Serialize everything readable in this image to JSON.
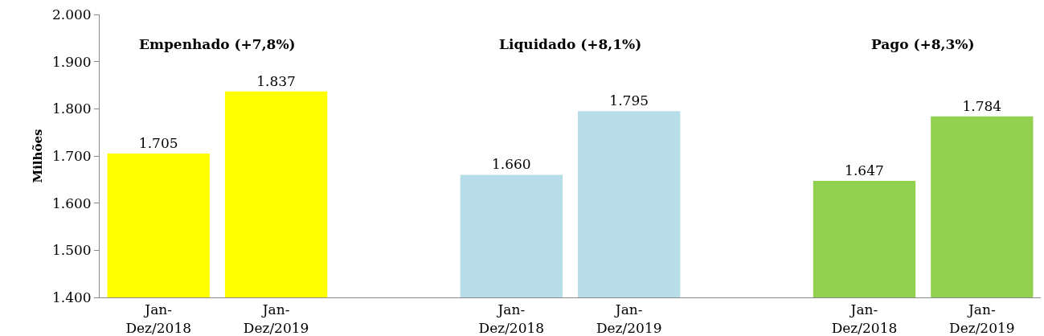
{
  "chart_data": {
    "type": "bar",
    "ylabel": "Milhões",
    "categories": [
      "Jan-\nDez/2018",
      "Jan-\nDez/2019",
      null,
      "Jan-\nDez/2018",
      "Jan-\nDez/2019",
      null,
      "Jan-\nDez/2018",
      "Jan-\nDez/2019"
    ],
    "values": [
      1705,
      1837,
      null,
      1660,
      1795,
      null,
      1647,
      1784
    ],
    "colors": [
      "#ffff00",
      "#ffff00",
      null,
      "#b7dde8",
      "#b7dde8",
      null,
      "#92d050",
      "#92d050"
    ],
    "value_labels": [
      "1.705",
      "1.837",
      null,
      "1.660",
      "1.795",
      null,
      "1.647",
      "1.784"
    ],
    "ylim": [
      1400,
      2000
    ],
    "yticks": [
      {
        "value": 1400,
        "label": "1.400"
      },
      {
        "value": 1500,
        "label": "1.500"
      },
      {
        "value": 1600,
        "label": "1.600"
      },
      {
        "value": 1700,
        "label": "1.700"
      },
      {
        "value": 1800,
        "label": "1.800"
      },
      {
        "value": 1900,
        "label": "1.900"
      },
      {
        "value": 2000,
        "label": "2.000"
      }
    ],
    "annotations": [
      "Empenhado (+7,8%)",
      "Liquidado (+8,1%)",
      "Pago (+8,3%)"
    ],
    "legend": false
  }
}
